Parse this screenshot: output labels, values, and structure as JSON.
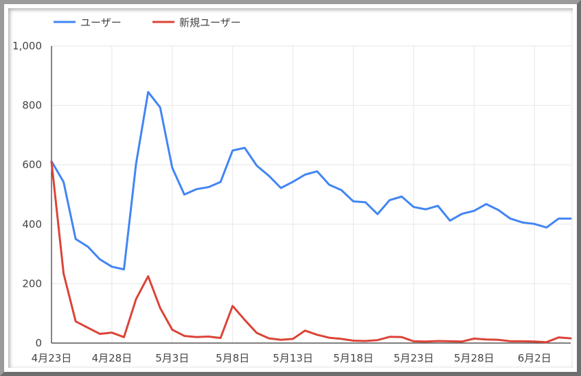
{
  "chart_data": {
    "type": "line",
    "title": "",
    "xlabel": "",
    "ylabel": "",
    "ylim": [
      0,
      1000
    ],
    "grid": true,
    "legend_position": "top-left",
    "y_ticks": [
      "0",
      "200",
      "400",
      "600",
      "800",
      "1,000"
    ],
    "x_tick_labels": [
      "4月23日",
      "4月28日",
      "5月3日",
      "5月8日",
      "5月13日",
      "5月18日",
      "5月23日",
      "5月28日",
      "6月2日"
    ],
    "x": [
      "4月23日",
      "4月24日",
      "4月25日",
      "4月26日",
      "4月27日",
      "4月28日",
      "4月29日",
      "4月30日",
      "5月1日",
      "5月2日",
      "5月3日",
      "5月4日",
      "5月5日",
      "5月6日",
      "5月7日",
      "5月8日",
      "5月9日",
      "5月10日",
      "5月11日",
      "5月12日",
      "5月13日",
      "5月14日",
      "5月15日",
      "5月16日",
      "5月17日",
      "5月18日",
      "5月19日",
      "5月20日",
      "5月21日",
      "5月22日",
      "5月23日",
      "5月24日",
      "5月25日",
      "5月26日",
      "5月27日",
      "5月28日",
      "5月29日",
      "5月30日",
      "5月31日",
      "6月1日",
      "6月2日",
      "6月3日",
      "6月4日",
      "6月5日"
    ],
    "series": [
      {
        "name": "ユーザー",
        "color": "#4285f4",
        "values": [
          612,
          542,
          350,
          325,
          282,
          257,
          248,
          603,
          845,
          793,
          590,
          500,
          518,
          525,
          542,
          648,
          657,
          597,
          563,
          522,
          543,
          567,
          578,
          533,
          515,
          477,
          474,
          434,
          481,
          493,
          458,
          450,
          462,
          412,
          435,
          445,
          468,
          448,
          419,
          406,
          401,
          389,
          419,
          419
        ]
      },
      {
        "name": "新規ユーザー",
        "color": "#db4437",
        "values": [
          610,
          234,
          73,
          52,
          31,
          35,
          20,
          148,
          225,
          118,
          45,
          24,
          20,
          22,
          17,
          125,
          78,
          34,
          16,
          11,
          14,
          42,
          28,
          18,
          14,
          8,
          7,
          10,
          21,
          20,
          6,
          5,
          7,
          6,
          5,
          15,
          12,
          11,
          6,
          6,
          5,
          3,
          19,
          16
        ]
      }
    ]
  }
}
